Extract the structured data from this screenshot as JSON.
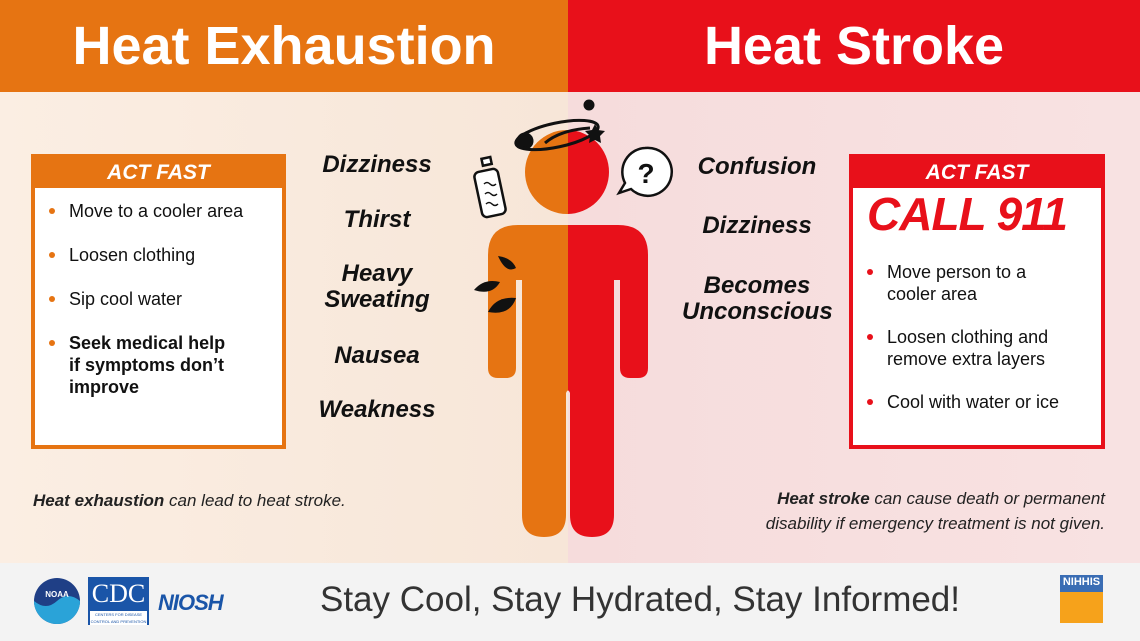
{
  "left": {
    "title": "Heat Exhaustion",
    "box_header": "ACT FAST",
    "actions": [
      "Move to a cooler area",
      "Loosen clothing",
      "Sip cool water",
      "Seek medical help if symptoms don’t improve"
    ],
    "symptoms": [
      "Dizziness",
      "Thirst",
      "Heavy Sweating",
      "Nausea",
      "Weakness"
    ],
    "note_bold": "Heat exhaustion",
    "note_rest": " can lead to heat stroke.",
    "color": "#e67412"
  },
  "right": {
    "title": "Heat Stroke",
    "box_header": "ACT FAST",
    "call": "CALL 911",
    "actions": [
      "Move person to a cooler area",
      "Loosen clothing and remove extra layers",
      "Cool with water or ice"
    ],
    "symptoms": [
      "Confusion",
      "Dizziness",
      "Becomes Unconscious"
    ],
    "note_bold": "Heat stroke",
    "note_rest": " can cause death or permanent disability if emergency treatment is not given.",
    "color": "#e8101a"
  },
  "footer": {
    "tagline": "Stay Cool, Stay Hydrated, Stay Informed!",
    "logos": [
      "NOAA",
      "CDC",
      "NIOSH",
      "NIHHIS"
    ],
    "cdc_sub": "CENTERS FOR DISEASE CONTROL AND PREVENTION"
  },
  "icons": [
    "water-bottle-icon",
    "dizzy-orbit-icon",
    "question-bubble-icon",
    "sweat-drops-icon"
  ]
}
